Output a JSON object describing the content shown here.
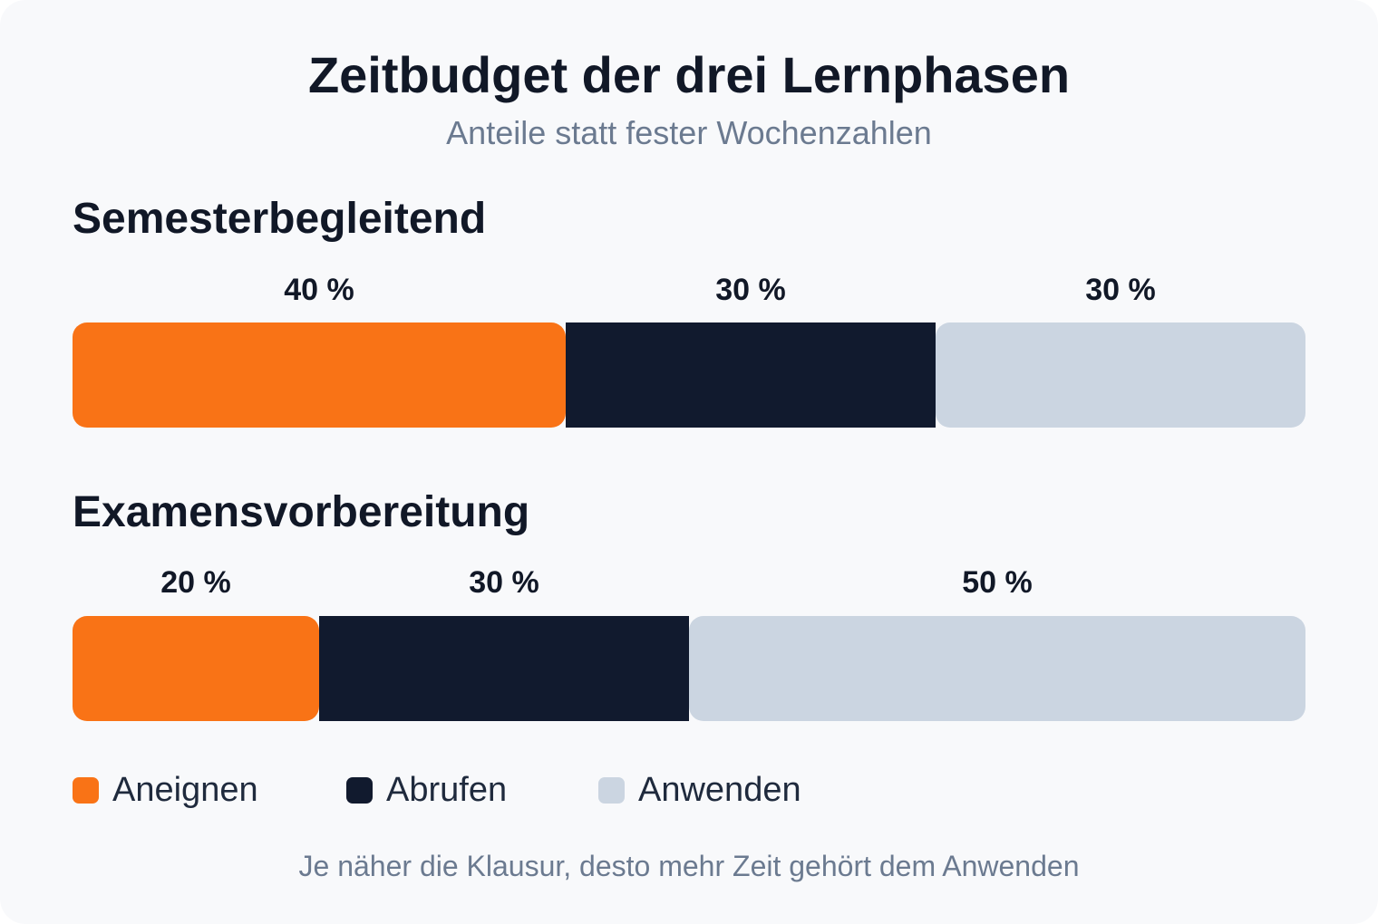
{
  "title": "Zeitbudget der drei Lernphasen",
  "subtitle": "Anteile statt fester Wochenzahlen",
  "footer": "Je näher die Klausur, desto mehr Zeit gehört dem Anwenden",
  "colors": {
    "Aneignen": "#f97316",
    "Abrufen": "#111a2e",
    "Anwenden": "#cbd5e1"
  },
  "legend": [
    {
      "label": "Aneignen",
      "color": "#f97316"
    },
    {
      "label": "Abrufen",
      "color": "#111a2e"
    },
    {
      "label": "Anwenden",
      "color": "#cbd5e1"
    }
  ],
  "chart_data": {
    "type": "bar",
    "orientation": "horizontal",
    "stacked": true,
    "unit": "%",
    "categories": [
      "Semesterbegleitend",
      "Examensvorbereitung"
    ],
    "series": [
      {
        "name": "Aneignen",
        "values": [
          40,
          20
        ]
      },
      {
        "name": "Abrufen",
        "values": [
          30,
          30
        ]
      },
      {
        "name": "Anwenden",
        "values": [
          30,
          50
        ]
      }
    ],
    "value_labels": [
      [
        "40 %",
        "30 %",
        "30 %"
      ],
      [
        "20 %",
        "30 %",
        "50 %"
      ]
    ],
    "xlim": [
      0,
      100
    ],
    "grid": false,
    "legend_position": "bottom-left"
  }
}
